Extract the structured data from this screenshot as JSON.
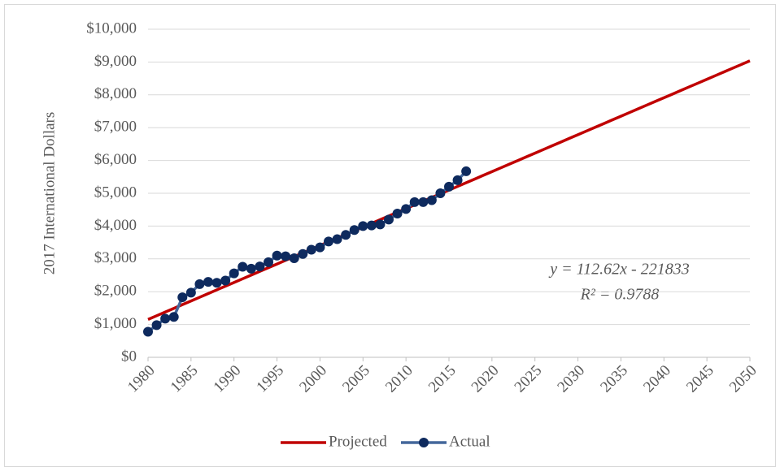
{
  "chart_data": {
    "type": "line",
    "ylabel": "2017 International Dollars",
    "annotations": [
      "y = 112.62x - 221833",
      "R² = 0.9788"
    ],
    "xlim": [
      1980,
      2050
    ],
    "xticks": [
      1980,
      1985,
      1990,
      1995,
      2000,
      2005,
      2010,
      2015,
      2020,
      2025,
      2030,
      2035,
      2040,
      2045,
      2050
    ],
    "ylim": [
      0,
      10000
    ],
    "yticks": [
      {
        "value": 0,
        "label": "$0"
      },
      {
        "value": 1000,
        "label": "$1,000"
      },
      {
        "value": 2000,
        "label": "$2,000"
      },
      {
        "value": 3000,
        "label": "$3,000"
      },
      {
        "value": 4000,
        "label": "$4,000"
      },
      {
        "value": 5000,
        "label": "$5,000"
      },
      {
        "value": 6000,
        "label": "$6,000"
      },
      {
        "value": 7000,
        "label": "$7,000"
      },
      {
        "value": 8000,
        "label": "$8,000"
      },
      {
        "value": 9000,
        "label": "$9,000"
      },
      {
        "value": 10000,
        "label": "$10,000"
      }
    ],
    "grid": true,
    "legend": "bottom",
    "series": [
      {
        "name": "Projected",
        "color": "#c00000",
        "markers": false,
        "x": [
          1980,
          1981,
          1982,
          1983,
          1984,
          1985,
          1986,
          1987,
          1988,
          1989,
          1990,
          1991,
          1992,
          1993,
          1994,
          1995,
          1996,
          1997,
          1998,
          1999,
          2000,
          2001,
          2002,
          2003,
          2004,
          2005,
          2006,
          2007,
          2008,
          2009,
          2010,
          2011,
          2012,
          2013,
          2014,
          2015,
          2016,
          2017,
          2018,
          2019,
          2020,
          2021,
          2022,
          2023,
          2024,
          2025,
          2026,
          2027,
          2028,
          2029,
          2030,
          2031,
          2032,
          2033,
          2034,
          2035,
          2036,
          2037,
          2038,
          2039,
          2040,
          2041,
          2042,
          2043,
          2044,
          2045,
          2046,
          2047,
          2048,
          2049,
          2050
        ],
        "values": [
          1155,
          1267,
          1380,
          1492,
          1605,
          1718,
          1830,
          1943,
          2056,
          2168,
          2281,
          2393,
          2506,
          2619,
          2731,
          2844,
          2957,
          3069,
          3182,
          3294,
          3407,
          3520,
          3632,
          3745,
          3857,
          3970,
          4083,
          4195,
          4308,
          4421,
          4533,
          4646,
          4758,
          4871,
          4984,
          5096,
          5209,
          5322,
          5434,
          5547,
          5659,
          5772,
          5885,
          5997,
          6110,
          6222,
          6335,
          6448,
          6560,
          6673,
          6786,
          6898,
          7011,
          7123,
          7236,
          7349,
          7461,
          7574,
          7687,
          7799,
          7912,
          8024,
          8137,
          8250,
          8362,
          8475,
          8588,
          8700,
          8813,
          8925,
          9038
        ]
      },
      {
        "name": "Actual",
        "color": "#44679b",
        "marker_color": "#0e2a5e",
        "markers": true,
        "x": [
          1980,
          1981,
          1982,
          1983,
          1984,
          1985,
          1986,
          1987,
          1988,
          1989,
          1990,
          1991,
          1992,
          1993,
          1994,
          1995,
          1996,
          1997,
          1998,
          1999,
          2000,
          2001,
          2002,
          2003,
          2004,
          2005,
          2006,
          2007,
          2008,
          2009,
          2010,
          2011,
          2012,
          2013,
          2014,
          2015,
          2016,
          2017
        ],
        "values": [
          780,
          980,
          1180,
          1230,
          1830,
          1970,
          2230,
          2300,
          2270,
          2340,
          2560,
          2760,
          2700,
          2770,
          2900,
          3100,
          3080,
          3020,
          3150,
          3280,
          3350,
          3530,
          3600,
          3730,
          3880,
          4000,
          4020,
          4050,
          4200,
          4380,
          4520,
          4730,
          4730,
          4790,
          5000,
          5200,
          5400,
          5670
        ]
      }
    ]
  }
}
